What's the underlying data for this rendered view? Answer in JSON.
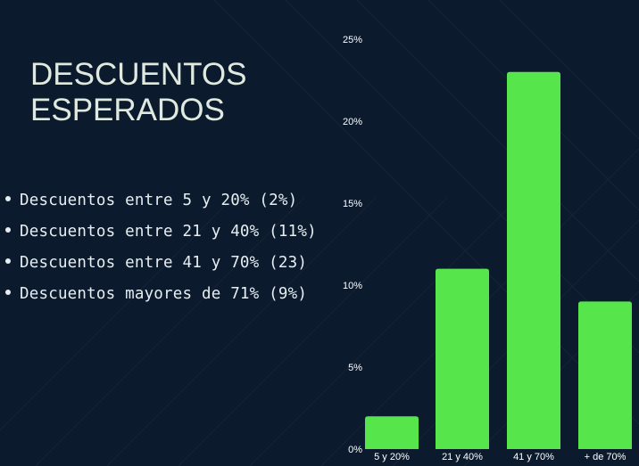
{
  "slide": {
    "title_line1": "DESCUENTOS",
    "title_line2": "ESPERADOS",
    "bullets": [
      "Descuentos entre 5 y 20% (2%)",
      "Descuentos entre 21 y 40% (11%)",
      "Descuentos entre 41 y 70% (23)",
      "Descuentos mayores de 71% (9%)"
    ]
  },
  "colors": {
    "background": "#0b1a2d",
    "bar": "#56e64c",
    "title": "#dfe9df",
    "text": "#e6eef2"
  },
  "chart_data": {
    "type": "bar",
    "categories": [
      "5 y 20%",
      "21 y 40%",
      "41 y 70%",
      "+ de 70%"
    ],
    "values": [
      2,
      11,
      23,
      9
    ],
    "ylim": [
      0,
      25
    ],
    "yticks": [
      0,
      5,
      10,
      15,
      20,
      25
    ],
    "ytick_labels": [
      "0%",
      "5%",
      "10%",
      "15%",
      "20%",
      "25%"
    ],
    "grid": false,
    "legend": "none"
  }
}
